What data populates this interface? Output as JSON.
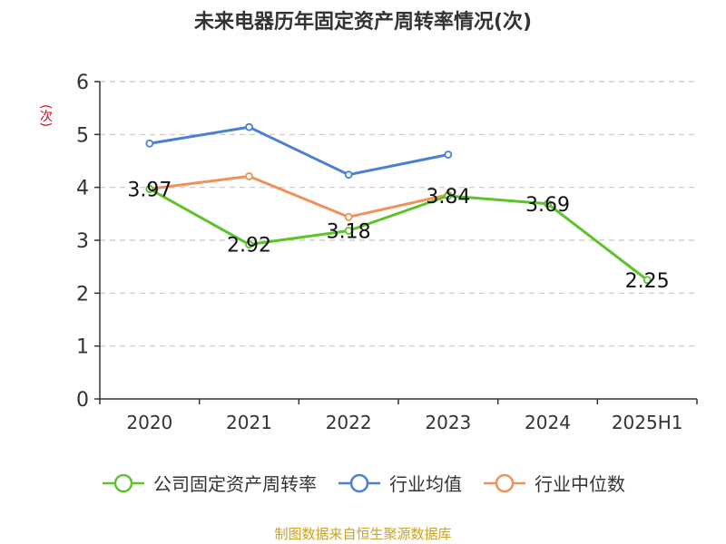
{
  "chart_data": {
    "type": "line",
    "title": "未来电器历年固定资产周转率情况(次)",
    "ylabel": "(次)",
    "categories": [
      "2020",
      "2021",
      "2022",
      "2023",
      "2024",
      "2025H1"
    ],
    "ylim": [
      0,
      6
    ],
    "yticks": [
      0,
      1,
      2,
      3,
      4,
      5,
      6
    ],
    "grid": true,
    "legend_position": "bottom",
    "series": [
      {
        "name": "公司固定资产周转率",
        "color": "#5cc42a",
        "values": [
          3.97,
          2.92,
          3.18,
          3.84,
          3.69,
          2.25
        ],
        "labels": true
      },
      {
        "name": "行业均值",
        "color": "#4a7fd6",
        "values": [
          4.83,
          5.14,
          4.24,
          4.62,
          null,
          null
        ],
        "labels": false
      },
      {
        "name": "行业中位数",
        "color": "#f0915a",
        "values": [
          3.97,
          4.21,
          3.44,
          3.86,
          null,
          null
        ],
        "labels": false
      }
    ]
  },
  "source": "制图数据来自恒生聚源数据库"
}
